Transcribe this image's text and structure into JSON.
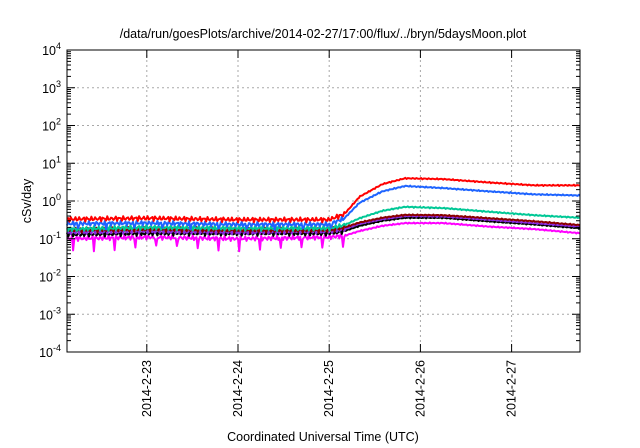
{
  "chart_data": {
    "type": "line",
    "title": "/data/run/goesPlots/archive/2014-02-27/17:00/flux/../bryn/5daysMoon.plot",
    "xlabel": "Coordinated Universal Time (UTC)",
    "ylabel": "cSv/day",
    "y_scale": "log",
    "grid": true,
    "xlim": [
      "2014-02-22 03:00",
      "2014-02-27 18:00"
    ],
    "ylim": [
      0.0001,
      10000
    ],
    "x_ticks": [
      "2014-2-23",
      "2014-2-24",
      "2014-2-25",
      "2014-2-26",
      "2014-2-27"
    ],
    "y_ticks": [
      {
        "value": 0.0001,
        "base": "10",
        "exp": "-4"
      },
      {
        "value": 0.001,
        "base": "10",
        "exp": "-3"
      },
      {
        "value": 0.01,
        "base": "10",
        "exp": "-2"
      },
      {
        "value": 0.1,
        "base": "10",
        "exp": "-1"
      },
      {
        "value": 1,
        "base": "10",
        "exp": "0"
      },
      {
        "value": 10,
        "base": "10",
        "exp": "1"
      },
      {
        "value": 100,
        "base": "10",
        "exp": "2"
      },
      {
        "value": 1000,
        "base": "10",
        "exp": "3"
      },
      {
        "value": 10000,
        "base": "10",
        "exp": "4"
      }
    ],
    "series": [
      {
        "color": "#ff00ff",
        "x": [
          "2014-02-22 03:00",
          "2014-02-23 00:00",
          "2014-02-24 00:00",
          "2014-02-25 00:00",
          "2014-02-25 04:00",
          "2014-02-25 08:00",
          "2014-02-25 14:00",
          "2014-02-25 20:00",
          "2014-02-26 06:00",
          "2014-02-26 18:00",
          "2014-02-27 06:00",
          "2014-02-27 18:00"
        ],
        "y": [
          0.1,
          0.11,
          0.1,
          0.11,
          0.12,
          0.16,
          0.22,
          0.26,
          0.26,
          0.21,
          0.18,
          0.14
        ]
      },
      {
        "color": "#000000",
        "x": [
          "2014-02-22 03:00",
          "2014-02-23 00:00",
          "2014-02-24 00:00",
          "2014-02-25 00:00",
          "2014-02-25 04:00",
          "2014-02-25 08:00",
          "2014-02-25 14:00",
          "2014-02-25 20:00",
          "2014-02-26 06:00",
          "2014-02-26 18:00",
          "2014-02-27 06:00",
          "2014-02-27 18:00"
        ],
        "y": [
          0.13,
          0.14,
          0.14,
          0.14,
          0.16,
          0.22,
          0.3,
          0.36,
          0.36,
          0.29,
          0.24,
          0.19
        ]
      },
      {
        "color": "#8a2be2",
        "x": [
          "2014-02-22 03:00",
          "2014-02-23 00:00",
          "2014-02-24 00:00",
          "2014-02-25 00:00",
          "2014-02-25 04:00",
          "2014-02-25 08:00",
          "2014-02-25 14:00",
          "2014-02-25 20:00",
          "2014-02-26 06:00",
          "2014-02-26 18:00",
          "2014-02-27 06:00",
          "2014-02-27 18:00"
        ],
        "y": [
          0.15,
          0.16,
          0.15,
          0.16,
          0.18,
          0.25,
          0.33,
          0.4,
          0.39,
          0.32,
          0.26,
          0.21
        ]
      },
      {
        "color": "#8b0000",
        "x": [
          "2014-02-22 03:00",
          "2014-02-23 00:00",
          "2014-02-24 00:00",
          "2014-02-25 00:00",
          "2014-02-25 04:00",
          "2014-02-25 08:00",
          "2014-02-25 14:00",
          "2014-02-25 20:00",
          "2014-02-26 06:00",
          "2014-02-26 18:00",
          "2014-02-27 06:00",
          "2014-02-27 18:00"
        ],
        "y": [
          0.17,
          0.18,
          0.17,
          0.17,
          0.2,
          0.27,
          0.36,
          0.43,
          0.42,
          0.35,
          0.29,
          0.23
        ]
      },
      {
        "color": "#00c896",
        "x": [
          "2014-02-22 03:00",
          "2014-02-23 00:00",
          "2014-02-24 00:00",
          "2014-02-25 00:00",
          "2014-02-25 04:00",
          "2014-02-25 08:00",
          "2014-02-25 14:00",
          "2014-02-25 20:00",
          "2014-02-26 06:00",
          "2014-02-26 18:00",
          "2014-02-27 06:00",
          "2014-02-27 18:00"
        ],
        "y": [
          0.18,
          0.2,
          0.19,
          0.19,
          0.23,
          0.35,
          0.55,
          0.7,
          0.65,
          0.52,
          0.42,
          0.36
        ]
      },
      {
        "color": "#1e64ff",
        "x": [
          "2014-02-22 03:00",
          "2014-02-23 00:00",
          "2014-02-24 00:00",
          "2014-02-25 00:00",
          "2014-02-25 04:00",
          "2014-02-25 08:00",
          "2014-02-25 14:00",
          "2014-02-25 20:00",
          "2014-02-26 06:00",
          "2014-02-26 18:00",
          "2014-02-27 06:00",
          "2014-02-27 18:00"
        ],
        "y": [
          0.25,
          0.26,
          0.24,
          0.24,
          0.35,
          0.9,
          1.8,
          2.5,
          2.2,
          1.8,
          1.5,
          1.4
        ]
      },
      {
        "color": "#ff0000",
        "x": [
          "2014-02-22 03:00",
          "2014-02-23 00:00",
          "2014-02-24 00:00",
          "2014-02-25 00:00",
          "2014-02-25 04:00",
          "2014-02-25 08:00",
          "2014-02-25 14:00",
          "2014-02-25 20:00",
          "2014-02-26 06:00",
          "2014-02-26 18:00",
          "2014-02-27 06:00",
          "2014-02-27 18:00"
        ],
        "y": [
          0.33,
          0.35,
          0.32,
          0.32,
          0.45,
          1.3,
          2.8,
          4.0,
          3.8,
          3.1,
          2.6,
          2.6
        ]
      }
    ]
  }
}
